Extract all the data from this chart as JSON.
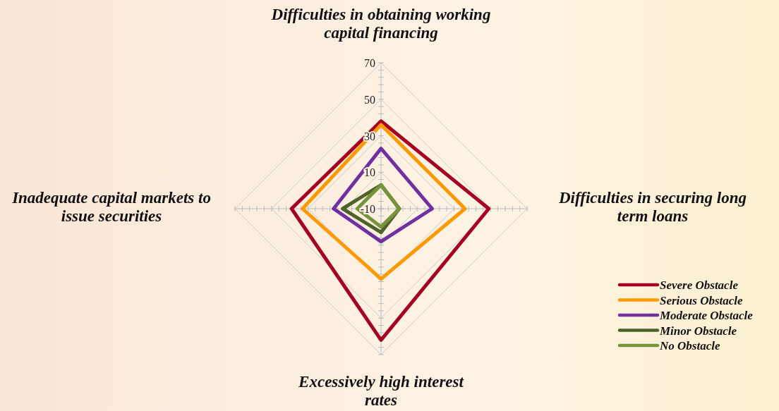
{
  "chart_data": {
    "type": "radar",
    "categories": [
      "Difficulties in obtaining working capital financing",
      "Difficulties in securing long term loans",
      "Excessively high interest rates",
      "Inadequate capital markets to issue securities"
    ],
    "ylim": [
      -10,
      70
    ],
    "yticks": [
      -10,
      10,
      30,
      50,
      70
    ],
    "grid": true,
    "legend": "bottom right",
    "marker": "none",
    "series": [
      {
        "name": "Severe Obstacle",
        "color": "#a50021",
        "values": [
          38,
          49,
          62,
          39
        ]
      },
      {
        "name": "Serious Obstacle",
        "color": "#ff9900",
        "values": [
          36,
          36,
          28.5,
          33
        ]
      },
      {
        "name": "Moderate Obstacle",
        "color": "#7030a0",
        "values": [
          23,
          18,
          8,
          16
        ]
      },
      {
        "name": "Minor Obstacle",
        "color": "#4f6228",
        "values": [
          3,
          0,
          3,
          11
        ]
      },
      {
        "name": "No Obstacle",
        "color": "#77933c",
        "values": [
          3,
          0,
          0,
          3
        ]
      }
    ]
  }
}
